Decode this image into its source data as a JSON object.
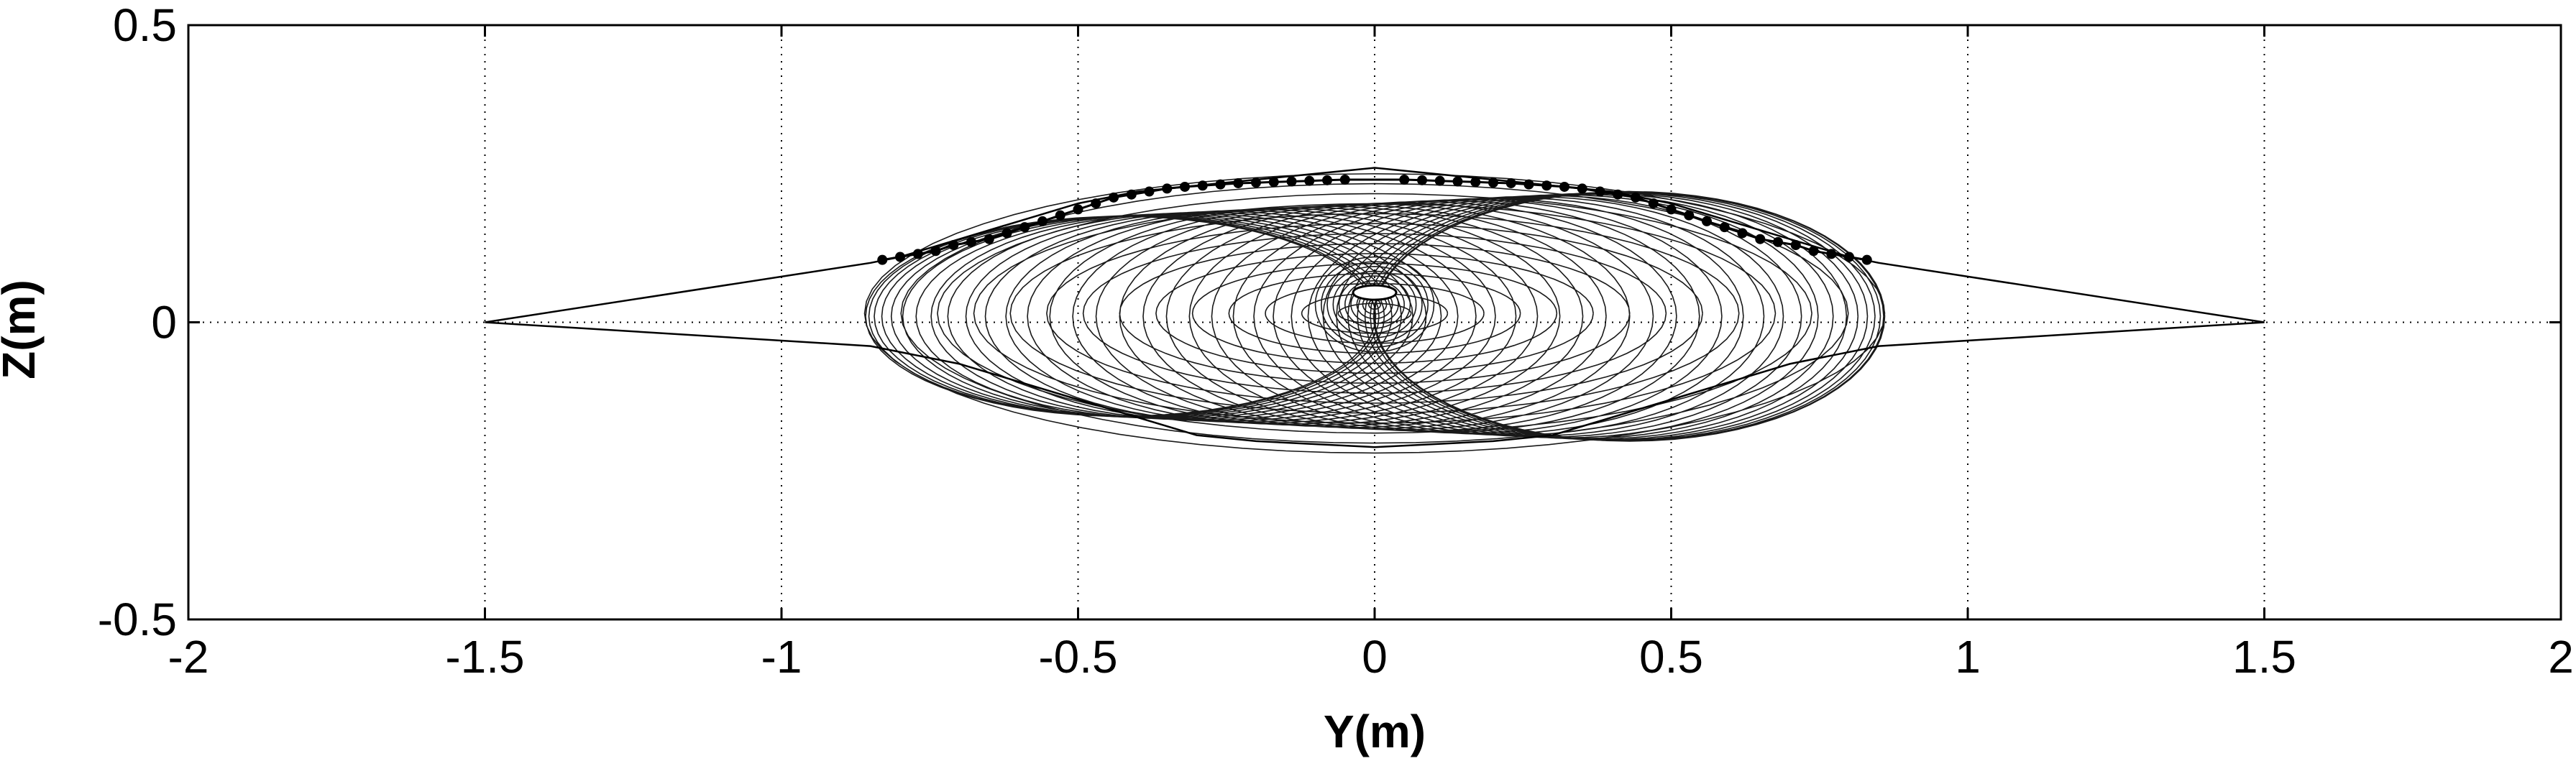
{
  "chart_data": {
    "type": "line",
    "title": "",
    "xlabel": "Y(m)",
    "ylabel": "Z(m)",
    "xlim": [
      -2,
      2
    ],
    "ylim": [
      -0.5,
      0.5
    ],
    "x_ticks": [
      -2,
      -1.5,
      -1,
      -0.5,
      0,
      0.5,
      1,
      1.5,
      2
    ],
    "x_tick_labels": [
      "-2",
      "-1.5",
      "-1",
      "-0.5",
      "0",
      "0.5",
      "1",
      "1.5",
      "2"
    ],
    "y_ticks": [
      -0.5,
      0,
      0.5
    ],
    "y_tick_labels": [
      "-0.5",
      "0",
      "0.5"
    ],
    "grid": true,
    "grid_style": "dotted",
    "line_color": "#000000",
    "series": [
      {
        "values_note_kind": "wireframe-outline",
        "x": [
          -1.5,
          -0.85,
          -0.8,
          -0.7,
          -0.6,
          -0.5,
          -0.4,
          -0.3,
          -0.2,
          -0.1,
          0,
          0.1,
          0.2,
          0.3,
          0.4,
          0.5,
          0.6,
          0.7,
          0.8,
          0.85,
          1.5,
          0.85,
          0.7,
          0.6,
          0.5,
          0.3,
          0.2,
          0,
          -0.2,
          -0.3,
          -0.5,
          -0.6,
          -0.7,
          -0.85,
          -1.5
        ],
        "y": [
          0,
          0.1,
          0.11,
          0.14,
          0.17,
          0.2,
          0.22,
          0.23,
          0.24,
          0.25,
          0.26,
          0.25,
          0.24,
          0.23,
          0.22,
          0.2,
          0.17,
          0.14,
          0.11,
          0.1,
          0,
          -0.04,
          -0.07,
          -0.1,
          -0.13,
          -0.19,
          -0.2,
          -0.21,
          -0.2,
          -0.19,
          -0.13,
          -0.1,
          -0.07,
          -0.04,
          0
        ]
      },
      {
        "x": [
          -0.83,
          -0.8,
          -0.77,
          -0.74,
          -0.71,
          -0.68,
          -0.65,
          -0.62,
          -0.59,
          -0.56,
          -0.53,
          -0.5,
          -0.47,
          -0.44,
          -0.41,
          -0.38,
          -0.35,
          -0.32,
          -0.29,
          -0.26,
          -0.23,
          -0.2,
          -0.17,
          -0.14,
          -0.11,
          -0.08,
          -0.05,
          0.05,
          0.08,
          0.11,
          0.14,
          0.17,
          0.2,
          0.23,
          0.26,
          0.29,
          0.32,
          0.35,
          0.38,
          0.41,
          0.44,
          0.47,
          0.5,
          0.53,
          0.56,
          0.59,
          0.62,
          0.65,
          0.68,
          0.71,
          0.74,
          0.77,
          0.8,
          0.83
        ],
        "y": [
          0.105,
          0.11,
          0.115,
          0.12,
          0.13,
          0.135,
          0.14,
          0.15,
          0.16,
          0.17,
          0.18,
          0.19,
          0.2,
          0.21,
          0.215,
          0.22,
          0.225,
          0.228,
          0.23,
          0.232,
          0.234,
          0.235,
          0.236,
          0.237,
          0.238,
          0.239,
          0.24,
          0.24,
          0.239,
          0.238,
          0.237,
          0.236,
          0.235,
          0.234,
          0.232,
          0.23,
          0.228,
          0.225,
          0.22,
          0.215,
          0.21,
          0.2,
          0.19,
          0.18,
          0.17,
          0.16,
          0.15,
          0.14,
          0.135,
          0.13,
          0.12,
          0.115,
          0.11,
          0.105
        ]
      }
    ]
  }
}
